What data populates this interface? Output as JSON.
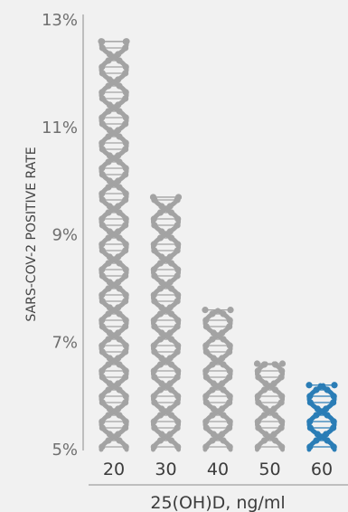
{
  "chart_data": {
    "type": "bar",
    "title": "",
    "xlabel": "25(OH)D, ng/ml",
    "ylabel": "SARS-COV-2 POSITIVE RATE",
    "categories": [
      "20",
      "30",
      "40",
      "50",
      "60"
    ],
    "values": [
      12.6,
      9.7,
      7.6,
      6.6,
      6.2
    ],
    "ylim": [
      5,
      13
    ],
    "yticks": [
      "5%",
      "7%",
      "9%",
      "11%",
      "13%"
    ],
    "ytick_values": [
      5,
      7,
      9,
      11,
      13
    ],
    "grid": false,
    "legend": "none",
    "bar_style": "dna-helix",
    "colors": {
      "default": "#a3a3a3",
      "highlight": "#2a7db6",
      "axis": "#8c8c8c",
      "background": "#f1f1f1"
    },
    "highlight_index": 4
  }
}
